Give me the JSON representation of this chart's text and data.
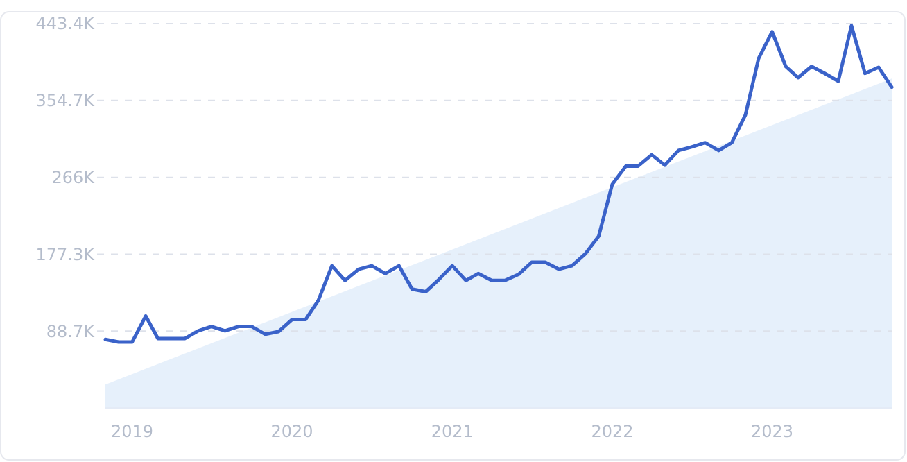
{
  "chart_data": {
    "type": "line",
    "x": [
      "2018-11",
      "2018-12",
      "2019-01",
      "2019-02",
      "2019-03",
      "2019-04",
      "2019-05",
      "2019-06",
      "2019-07",
      "2019-08",
      "2019-09",
      "2019-10",
      "2019-11",
      "2019-12",
      "2020-01",
      "2020-02",
      "2020-03",
      "2020-04",
      "2020-05",
      "2020-06",
      "2020-07",
      "2020-08",
      "2020-09",
      "2020-10",
      "2020-11",
      "2020-12",
      "2021-01",
      "2021-02",
      "2021-03",
      "2021-04",
      "2021-05",
      "2021-06",
      "2021-07",
      "2021-08",
      "2021-09",
      "2021-10",
      "2021-11",
      "2021-12",
      "2022-01",
      "2022-02",
      "2022-03",
      "2022-04",
      "2022-05",
      "2022-06",
      "2022-07",
      "2022-08",
      "2022-09",
      "2022-10",
      "2022-11",
      "2022-12",
      "2023-01",
      "2023-02",
      "2023-03",
      "2023-04",
      "2023-05",
      "2023-06",
      "2023-07",
      "2023-08",
      "2023-09",
      "2023-10"
    ],
    "series": [
      {
        "type": "area",
        "color": "#e3eefb",
        "x": [
          "2018-11",
          "2023-10"
        ],
        "values": [
          27000,
          380000
        ]
      },
      {
        "color": "#3a62c9",
        "values": [
          79000,
          76000,
          76000,
          106000,
          80000,
          80000,
          80000,
          89000,
          94000,
          89000,
          94000,
          94000,
          85000,
          88000,
          102000,
          102000,
          124000,
          164000,
          147000,
          160000,
          164000,
          155000,
          164000,
          137000,
          134000,
          148000,
          164000,
          147000,
          155000,
          147000,
          147000,
          154000,
          168000,
          168000,
          160000,
          164000,
          178000,
          198000,
          258000,
          279000,
          279000,
          292000,
          280000,
          297000,
          301000,
          306000,
          297000,
          306000,
          338000,
          403000,
          434000,
          394000,
          381000,
          394000,
          386000,
          377000,
          441000,
          386000,
          393000,
          370000
        ]
      }
    ],
    "xlim": [
      "2018-11",
      "2023-10"
    ],
    "xticks": [
      {
        "value": "2019-01",
        "label": "2019"
      },
      {
        "value": "2020-01",
        "label": "2020"
      },
      {
        "value": "2021-01",
        "label": "2021"
      },
      {
        "value": "2022-01",
        "label": "2022"
      },
      {
        "value": "2023-01",
        "label": "2023"
      }
    ],
    "ylim": [
      0,
      443400
    ],
    "yticks": [
      {
        "value": 88700,
        "label": "88.7K"
      },
      {
        "value": 177300,
        "label": "177.3K"
      },
      {
        "value": 266000,
        "label": "266K"
      },
      {
        "value": 354700,
        "label": "354.7K"
      },
      {
        "value": 443400,
        "label": "443.4K"
      }
    ],
    "grid": "y",
    "marker": "none",
    "line_style": "solid"
  }
}
